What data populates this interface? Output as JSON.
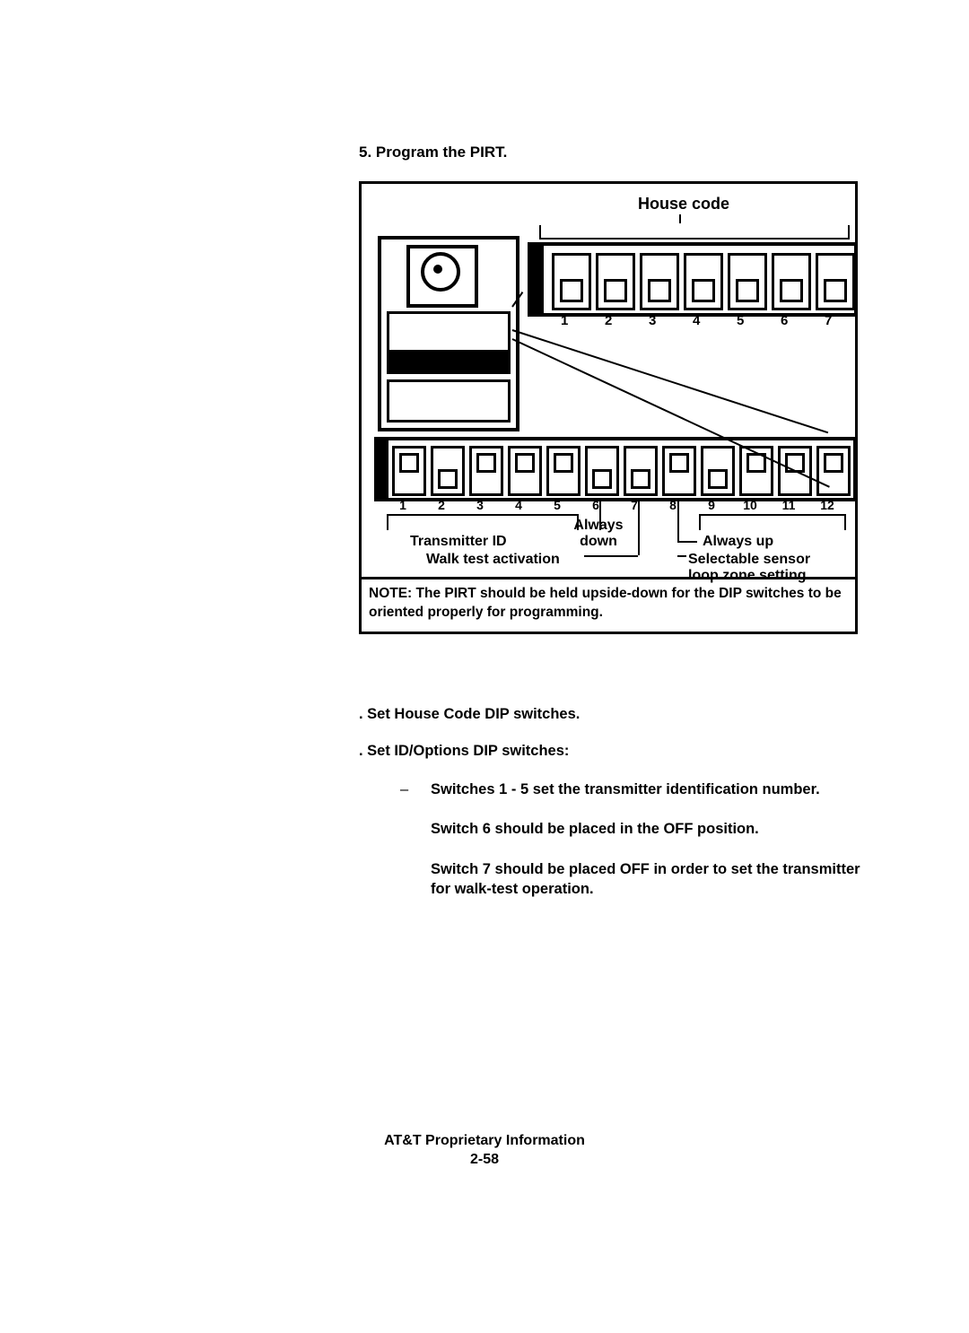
{
  "heading": "5. Program the PIRT.",
  "figure": {
    "house_code_label": "House code",
    "dip7": {
      "numbers": [
        "1",
        "2",
        "3",
        "4",
        "5",
        "6",
        "7"
      ],
      "knob_pos": [
        "down",
        "down",
        "down",
        "down",
        "down",
        "down",
        "down"
      ]
    },
    "dip12": {
      "numbers": [
        "1",
        "2",
        "3",
        "4",
        "5",
        "6",
        "7",
        "8",
        "9",
        "10",
        "11",
        "12"
      ],
      "knob_pos": [
        "up",
        "down",
        "up",
        "up",
        "up",
        "down",
        "down",
        "up",
        "down",
        "up",
        "up",
        "up"
      ]
    },
    "labels": {
      "transmitter_id": "Transmitter ID",
      "always_down": "Always down",
      "walk_test": "Walk test activation",
      "always_up": "Always up",
      "sel_loop_line1": "Selectable sensor",
      "sel_loop_line2": "loop zone setting"
    },
    "note": "NOTE: The PIRT should be held upside-down for the DIP switches to be oriented properly for programming."
  },
  "bullets": {
    "b1": ".  Set House Code DIP switches.",
    "b2": ".  Set ID/Options DIP switches:",
    "s1": "Switches 1 - 5 set the  transmitter  identification number.",
    "s2": "Switch 6 should be placed in the OFF position.",
    "s3": "Switch 7 should be placed OFF in order to set the transmitter for walk-test operation."
  },
  "footer": {
    "line1": "AT&T Proprietary Information",
    "line2": "2-58"
  },
  "style": {
    "colors": {
      "fg": "#000000",
      "bg": "#ffffff"
    },
    "dip7": {
      "left_start": 208,
      "pitch": 49,
      "sw_w": 38
    },
    "dip12": {
      "left_start": 30,
      "pitch": 43,
      "sw_w": 32
    }
  }
}
